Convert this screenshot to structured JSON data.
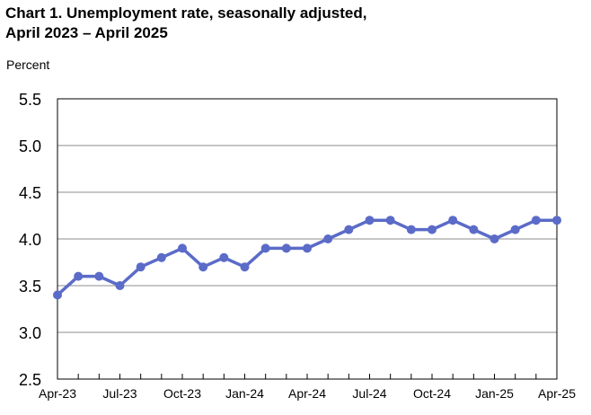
{
  "title_line1": "Chart 1. Unemployment rate, seasonally adjusted,",
  "title_line2": "April 2023 – April 2025",
  "chart_data": {
    "type": "line",
    "title": "Chart 1. Unemployment rate, seasonally adjusted, April 2023 – April 2025",
    "ylabel": "Percent",
    "xlabel": "",
    "ylim": [
      2.5,
      5.5
    ],
    "yticks": [
      "5.5",
      "5.0",
      "4.5",
      "4.0",
      "3.5",
      "3.0",
      "2.5"
    ],
    "ytick_values": [
      5.5,
      5.0,
      4.5,
      4.0,
      3.5,
      3.0,
      2.5
    ],
    "x": [
      "Apr-23",
      "May-23",
      "Jun-23",
      "Jul-23",
      "Aug-23",
      "Sep-23",
      "Oct-23",
      "Nov-23",
      "Dec-23",
      "Jan-24",
      "Feb-24",
      "Mar-24",
      "Apr-24",
      "May-24",
      "Jun-24",
      "Jul-24",
      "Aug-24",
      "Sep-24",
      "Oct-24",
      "Nov-24",
      "Dec-24",
      "Jan-25",
      "Feb-25",
      "Mar-25",
      "Apr-25"
    ],
    "xtick_labels": [
      "Apr-23",
      "Jul-23",
      "Oct-23",
      "Jan-24",
      "Apr-24",
      "Jul-24",
      "Oct-24",
      "Jan-25",
      "Apr-25"
    ],
    "series": [
      {
        "values": [
          3.4,
          3.6,
          3.6,
          3.5,
          3.7,
          3.8,
          3.9,
          3.7,
          3.8,
          3.7,
          3.9,
          3.9,
          3.9,
          4.0,
          4.1,
          4.2,
          4.2,
          4.1,
          4.1,
          4.2,
          4.1,
          4.0,
          4.1,
          4.2,
          4.2
        ]
      }
    ],
    "grid": true,
    "colors": {
      "line": "#5b6bc8",
      "grid": "#8c8c8c",
      "axis": "#000000"
    }
  }
}
